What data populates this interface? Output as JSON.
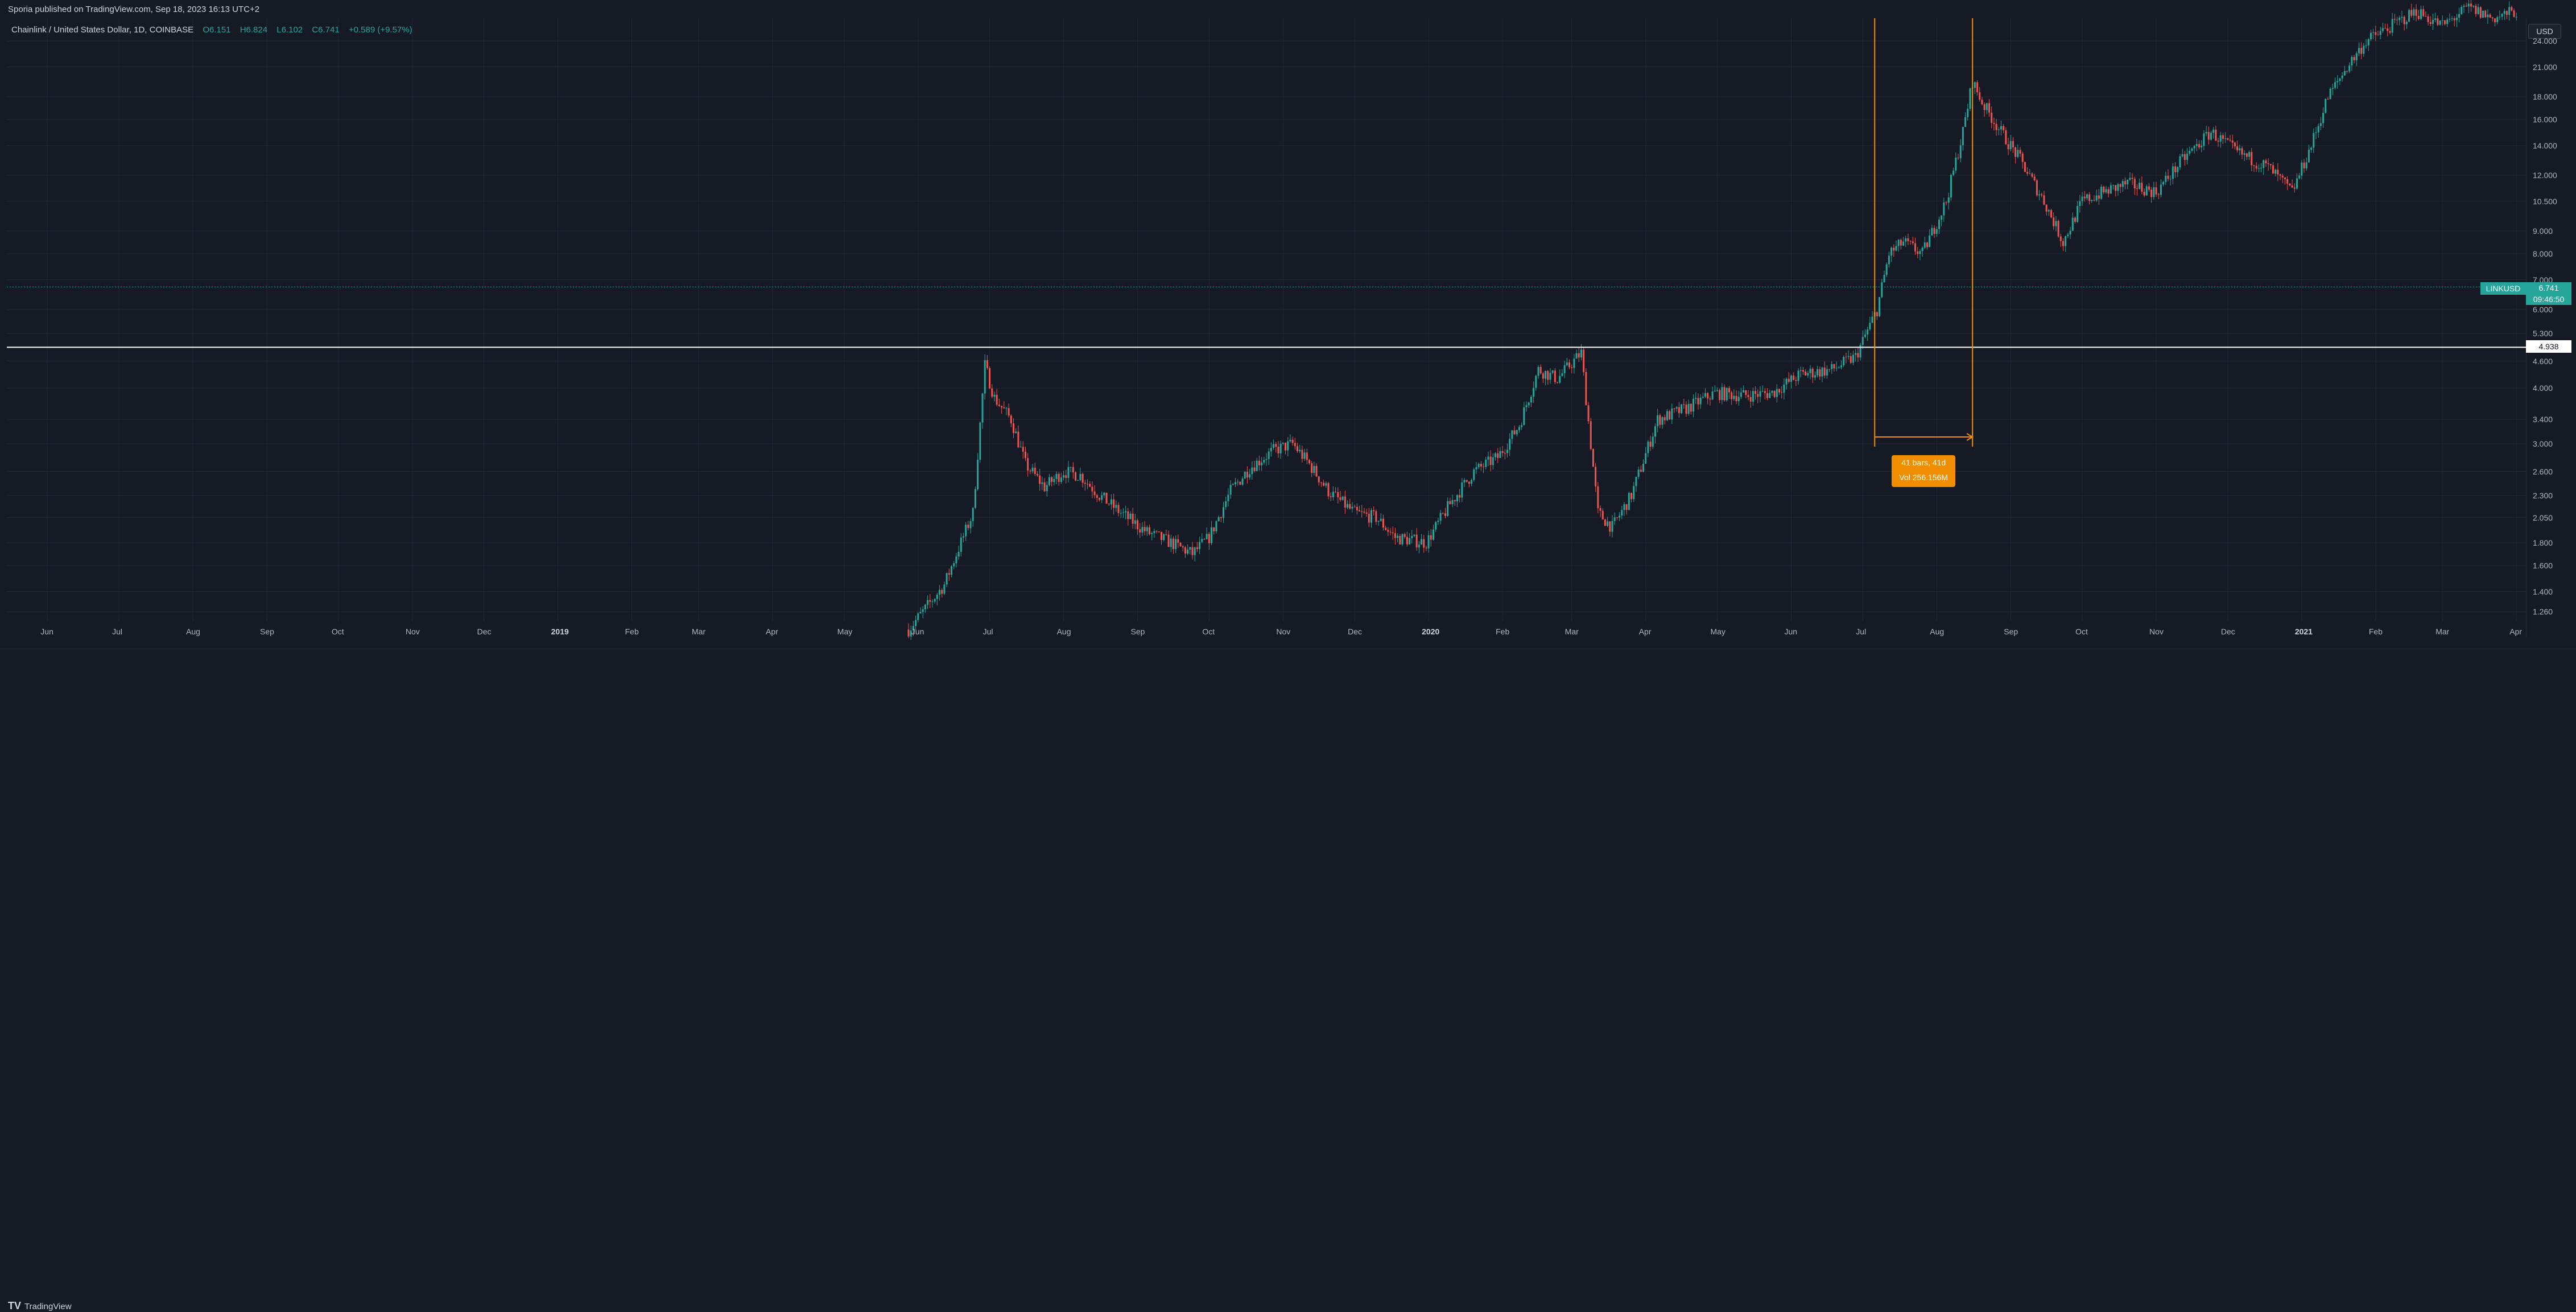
{
  "header": {
    "published": "Sporia published on TradingView.com, Sep 18, 2023 16:13 UTC+2"
  },
  "legend": {
    "symbol": "Chainlink / United States Dollar, 1D, COINBASE",
    "open": "O6.151",
    "high": "H6.824",
    "low": "L6.102",
    "close": "C6.741",
    "change": "+0.589 (+9.57%)"
  },
  "price_axis": {
    "currency": "USD",
    "labels": [
      "24.000",
      "21.000",
      "18.000",
      "16.000",
      "14.000",
      "12.000",
      "10.500",
      "9.000",
      "8.000",
      "7.000",
      "6.000",
      "5.300",
      "4.600",
      "4.000",
      "3.400",
      "3.000",
      "2.600",
      "2.300",
      "2.050",
      "1.800",
      "1.600",
      "1.400",
      "1.260"
    ]
  },
  "time_axis": {
    "labels": [
      {
        "text": "Jun",
        "year": false
      },
      {
        "text": "Jul",
        "year": false
      },
      {
        "text": "Aug",
        "year": false
      },
      {
        "text": "Sep",
        "year": false
      },
      {
        "text": "Oct",
        "year": false
      },
      {
        "text": "Nov",
        "year": false
      },
      {
        "text": "Dec",
        "year": false
      },
      {
        "text": "2019",
        "year": true
      },
      {
        "text": "Feb",
        "year": false
      },
      {
        "text": "Mar",
        "year": false
      },
      {
        "text": "Apr",
        "year": false
      },
      {
        "text": "May",
        "year": false
      },
      {
        "text": "Jun",
        "year": false
      },
      {
        "text": "Jul",
        "year": false
      },
      {
        "text": "Aug",
        "year": false
      },
      {
        "text": "Sep",
        "year": false
      },
      {
        "text": "Oct",
        "year": false
      },
      {
        "text": "Nov",
        "year": false
      },
      {
        "text": "Dec",
        "year": false
      },
      {
        "text": "2020",
        "year": true
      },
      {
        "text": "Feb",
        "year": false
      },
      {
        "text": "Mar",
        "year": false
      },
      {
        "text": "Apr",
        "year": false
      },
      {
        "text": "May",
        "year": false
      },
      {
        "text": "Jun",
        "year": false
      },
      {
        "text": "Jul",
        "year": false
      },
      {
        "text": "Aug",
        "year": false
      },
      {
        "text": "Sep",
        "year": false
      },
      {
        "text": "Oct",
        "year": false
      },
      {
        "text": "Nov",
        "year": false
      },
      {
        "text": "Dec",
        "year": false
      },
      {
        "text": "2021",
        "year": true
      },
      {
        "text": "Feb",
        "year": false
      },
      {
        "text": "Mar",
        "year": false
      },
      {
        "text": "Apr",
        "year": false
      }
    ]
  },
  "markers": {
    "symbol_tag": "LINKUSD",
    "current_price": "6.741",
    "countdown": "09:46:50",
    "horizontal_line_price": "4.938"
  },
  "measure": {
    "bars": "41 bars, 41d",
    "volume": "Vol 256.156M"
  },
  "footer": {
    "brand_mark": "TV",
    "brand": "TradingView"
  },
  "colors": {
    "background": "#161a25",
    "up": "#26a69a",
    "down": "#ef5350",
    "measure": "#f08e00",
    "grid": "#242733"
  },
  "chart_data": {
    "type": "candlestick",
    "symbol": "LINKUSD",
    "interval": "1D",
    "scale": "log",
    "ylim": [
      1.2,
      27
    ],
    "x_range": [
      "2018-05-15",
      "2021-04-05"
    ],
    "series_anchor_close": [
      [
        "2019-05-28",
        1.15
      ],
      [
        "2019-06-05",
        1.3
      ],
      [
        "2019-06-12",
        1.45
      ],
      [
        "2019-06-18",
        1.75
      ],
      [
        "2019-06-24",
        2.1
      ],
      [
        "2019-06-29",
        4.5
      ],
      [
        "2019-07-03",
        3.8
      ],
      [
        "2019-07-10",
        3.4
      ],
      [
        "2019-07-16",
        2.7
      ],
      [
        "2019-07-24",
        2.4
      ],
      [
        "2019-08-01",
        2.6
      ],
      [
        "2019-08-08",
        2.55
      ],
      [
        "2019-08-16",
        2.3
      ],
      [
        "2019-08-25",
        2.1
      ],
      [
        "2019-09-05",
        1.9
      ],
      [
        "2019-09-15",
        1.8
      ],
      [
        "2019-09-24",
        1.7
      ],
      [
        "2019-10-01",
        1.85
      ],
      [
        "2019-10-10",
        2.35
      ],
      [
        "2019-10-18",
        2.65
      ],
      [
        "2019-10-28",
        2.9
      ],
      [
        "2019-11-05",
        3.0
      ],
      [
        "2019-11-12",
        2.7
      ],
      [
        "2019-11-20",
        2.35
      ],
      [
        "2019-12-01",
        2.1
      ],
      [
        "2019-12-10",
        2.05
      ],
      [
        "2019-12-18",
        1.85
      ],
      [
        "2019-12-31",
        1.8
      ],
      [
        "2020-01-10",
        2.2
      ],
      [
        "2020-01-20",
        2.6
      ],
      [
        "2020-01-30",
        2.8
      ],
      [
        "2020-02-08",
        3.3
      ],
      [
        "2020-02-16",
        4.4
      ],
      [
        "2020-02-24",
        4.2
      ],
      [
        "2020-03-05",
        4.8
      ],
      [
        "2020-03-12",
        2.1
      ],
      [
        "2020-03-18",
        1.95
      ],
      [
        "2020-03-26",
        2.3
      ],
      [
        "2020-04-06",
        3.4
      ],
      [
        "2020-04-18",
        3.6
      ],
      [
        "2020-04-30",
        3.9
      ],
      [
        "2020-05-12",
        3.85
      ],
      [
        "2020-05-24",
        3.9
      ],
      [
        "2020-06-05",
        4.3
      ],
      [
        "2020-06-18",
        4.4
      ],
      [
        "2020-06-28",
        4.7
      ],
      [
        "2020-07-07",
        6.0
      ],
      [
        "2020-07-12",
        8.0
      ],
      [
        "2020-07-18",
        8.5
      ],
      [
        "2020-07-26",
        8.0
      ],
      [
        "2020-08-05",
        10.5
      ],
      [
        "2020-08-12",
        15.0
      ],
      [
        "2020-08-16",
        19.5
      ],
      [
        "2020-08-20",
        17.5
      ],
      [
        "2020-08-28",
        15.0
      ],
      [
        "2020-09-05",
        13.0
      ],
      [
        "2020-09-15",
        10.5
      ],
      [
        "2020-09-23",
        8.5
      ],
      [
        "2020-10-01",
        10.5
      ],
      [
        "2020-10-10",
        11.0
      ],
      [
        "2020-10-20",
        11.5
      ],
      [
        "2020-11-01",
        11.0
      ],
      [
        "2020-11-12",
        13.0
      ],
      [
        "2020-11-24",
        15.0
      ],
      [
        "2020-12-05",
        13.5
      ],
      [
        "2020-12-18",
        12.5
      ],
      [
        "2020-12-28",
        11.0
      ],
      [
        "2021-01-05",
        14.0
      ],
      [
        "2021-01-12",
        18.0
      ],
      [
        "2021-01-20",
        21.0
      ],
      [
        "2021-01-28",
        24.0
      ],
      [
        "2021-02-08",
        26.0
      ],
      [
        "2021-02-18",
        28.0
      ],
      [
        "2021-03-01",
        26.0
      ],
      [
        "2021-03-12",
        28.5
      ],
      [
        "2021-03-22",
        27.0
      ],
      [
        "2021-04-01",
        28.0
      ]
    ],
    "horizontal_line": 4.938,
    "date_range_measure": {
      "start": "2020-07-06",
      "end": "2020-08-16",
      "label": "41 bars, 41d",
      "volume": "Vol 256.156M"
    }
  }
}
